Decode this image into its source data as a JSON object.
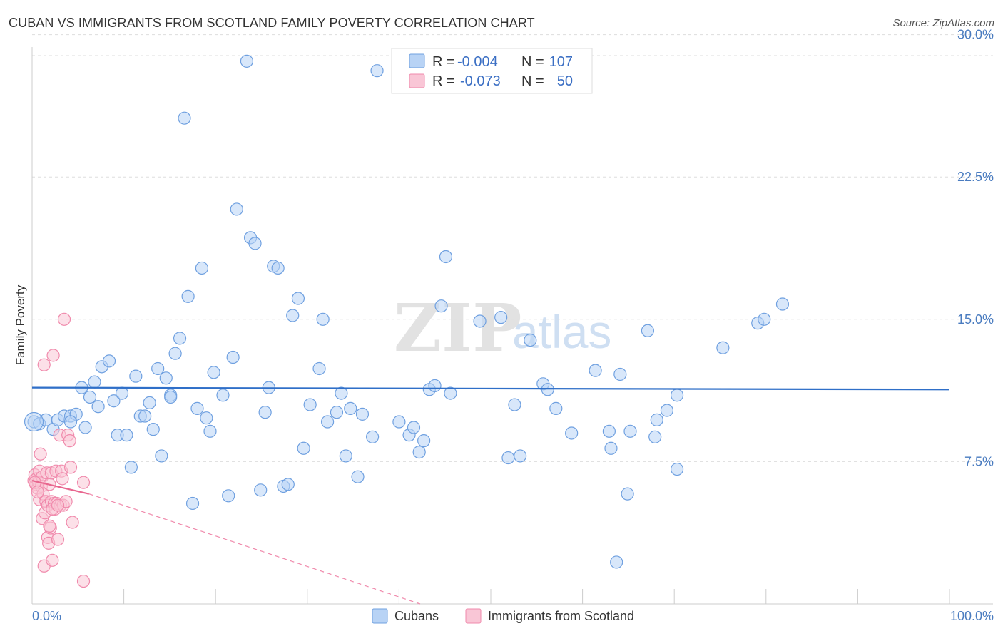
{
  "header": {
    "title": "CUBAN VS IMMIGRANTS FROM SCOTLAND FAMILY POVERTY CORRELATION CHART",
    "source": "Source: ZipAtlas.com"
  },
  "watermark": {
    "zip": "ZIP",
    "atlas": "atlas"
  },
  "legend_top": [
    {
      "r_label": "R =",
      "r_value": "-0.004",
      "n_label": "N =",
      "n_value": "107",
      "color": "#6fa0e0",
      "fill": "#b8d3f5"
    },
    {
      "r_label": "R =",
      "r_value": "-0.073",
      "n_label": "N =",
      "n_value": "50",
      "color": "#f08aac",
      "fill": "#f9c6d6"
    }
  ],
  "legend_bottom": [
    {
      "label": "Cubans",
      "color": "#6fa0e0",
      "fill": "#b8d3f5"
    },
    {
      "label": "Immigrants from Scotland",
      "color": "#f08aac",
      "fill": "#f9c6d6"
    }
  ],
  "chart_data": {
    "type": "scatter",
    "title": "CUBAN VS IMMIGRANTS FROM SCOTLAND FAMILY POVERTY CORRELATION CHART",
    "xlabel": "",
    "ylabel": "Family Poverty",
    "xlim": [
      0,
      100
    ],
    "ylim": [
      0,
      31
    ],
    "x_tick_labels": [
      "0.0%",
      "100.0%"
    ],
    "y_ticks": [
      7.5,
      15.0,
      22.5,
      30.0
    ],
    "y_tick_labels": [
      "7.5%",
      "15.0%",
      "22.5%",
      "30.0%"
    ],
    "grid": "horizontal dashed",
    "legend_placement": "top-center",
    "series": [
      {
        "name": "Cubans",
        "color": "#6fa0e0",
        "fill": "#b8d3f5",
        "trend": {
          "x": [
            0,
            100
          ],
          "y": [
            11.4,
            11.3
          ],
          "style": "solid"
        },
        "points": [
          [
            0.2,
            9.6
          ],
          [
            0.8,
            9.5
          ],
          [
            1.5,
            9.7
          ],
          [
            2.3,
            9.2
          ],
          [
            2.8,
            9.7
          ],
          [
            3.5,
            9.9
          ],
          [
            4.2,
            9.9
          ],
          [
            4.8,
            10.0
          ],
          [
            5.4,
            11.4
          ],
          [
            5.8,
            9.3
          ],
          [
            6.3,
            10.9
          ],
          [
            6.8,
            11.7
          ],
          [
            7.2,
            10.4
          ],
          [
            7.6,
            12.5
          ],
          [
            8.4,
            12.8
          ],
          [
            8.9,
            10.7
          ],
          [
            9.3,
            8.9
          ],
          [
            9.8,
            11.1
          ],
          [
            10.3,
            8.9
          ],
          [
            10.8,
            7.2
          ],
          [
            11.3,
            12.0
          ],
          [
            11.8,
            9.9
          ],
          [
            12.3,
            9.9
          ],
          [
            12.8,
            10.6
          ],
          [
            13.2,
            9.2
          ],
          [
            13.7,
            12.4
          ],
          [
            14.1,
            7.8
          ],
          [
            14.6,
            11.9
          ],
          [
            15.1,
            11.0
          ],
          [
            15.6,
            13.2
          ],
          [
            16.1,
            14.0
          ],
          [
            16.6,
            25.6
          ],
          [
            17.0,
            16.2
          ],
          [
            17.5,
            5.3
          ],
          [
            18.0,
            10.3
          ],
          [
            18.5,
            17.7
          ],
          [
            19.0,
            9.8
          ],
          [
            19.4,
            9.1
          ],
          [
            19.8,
            12.2
          ],
          [
            20.8,
            11.0
          ],
          [
            21.4,
            5.7
          ],
          [
            21.9,
            13.0
          ],
          [
            22.3,
            20.8
          ],
          [
            23.4,
            28.6
          ],
          [
            23.8,
            19.3
          ],
          [
            24.3,
            19.0
          ],
          [
            24.9,
            6.0
          ],
          [
            25.4,
            10.1
          ],
          [
            25.8,
            11.4
          ],
          [
            26.3,
            17.8
          ],
          [
            26.8,
            17.7
          ],
          [
            27.4,
            6.2
          ],
          [
            27.9,
            6.3
          ],
          [
            28.4,
            15.2
          ],
          [
            29.0,
            16.1
          ],
          [
            29.6,
            8.2
          ],
          [
            30.3,
            10.5
          ],
          [
            31.3,
            12.4
          ],
          [
            31.7,
            15.0
          ],
          [
            32.2,
            9.6
          ],
          [
            33.2,
            10.1
          ],
          [
            33.7,
            11.1
          ],
          [
            34.2,
            7.8
          ],
          [
            34.7,
            10.3
          ],
          [
            35.5,
            6.7
          ],
          [
            36.0,
            10.0
          ],
          [
            37.1,
            8.8
          ],
          [
            37.6,
            28.1
          ],
          [
            40.0,
            9.6
          ],
          [
            41.1,
            8.9
          ],
          [
            41.6,
            9.3
          ],
          [
            42.2,
            8.0
          ],
          [
            42.7,
            8.6
          ],
          [
            43.3,
            11.3
          ],
          [
            43.9,
            11.5
          ],
          [
            44.6,
            15.7
          ],
          [
            45.1,
            18.3
          ],
          [
            45.6,
            11.1
          ],
          [
            48.8,
            14.9
          ],
          [
            51.1,
            15.1
          ],
          [
            51.9,
            7.7
          ],
          [
            52.6,
            10.5
          ],
          [
            53.2,
            7.8
          ],
          [
            54.3,
            13.9
          ],
          [
            55.7,
            11.6
          ],
          [
            56.2,
            11.3
          ],
          [
            57.1,
            10.3
          ],
          [
            58.8,
            9.0
          ],
          [
            61.4,
            12.3
          ],
          [
            62.9,
            9.1
          ],
          [
            63.1,
            8.2
          ],
          [
            64.1,
            12.1
          ],
          [
            64.9,
            5.8
          ],
          [
            65.2,
            9.1
          ],
          [
            67.1,
            14.4
          ],
          [
            67.9,
            8.8
          ],
          [
            68.1,
            9.7
          ],
          [
            69.2,
            10.2
          ],
          [
            70.3,
            7.1
          ],
          [
            70.3,
            11.0
          ],
          [
            75.3,
            13.5
          ],
          [
            79.1,
            14.8
          ],
          [
            79.8,
            15.0
          ],
          [
            81.8,
            15.8
          ],
          [
            63.7,
            2.2
          ],
          [
            15.1,
            10.9
          ],
          [
            4.2,
            9.6
          ]
        ]
      },
      {
        "name": "Immigrants from Scotland",
        "color": "#f08aac",
        "fill": "#f9c6d6",
        "trend": {
          "x": [
            0,
            6.2
          ],
          "y": [
            6.5,
            5.8
          ],
          "style": "solid",
          "extended": {
            "x": [
              6.2,
              42.3
            ],
            "y": [
              5.8,
              0.0
            ],
            "style": "dashed"
          }
        },
        "points": [
          [
            0.2,
            6.5
          ],
          [
            0.3,
            6.8
          ],
          [
            0.4,
            6.3
          ],
          [
            0.5,
            6.6
          ],
          [
            0.6,
            6.1
          ],
          [
            0.7,
            6.4
          ],
          [
            0.8,
            7.0
          ],
          [
            0.8,
            5.5
          ],
          [
            0.9,
            7.9
          ],
          [
            1.0,
            6.2
          ],
          [
            1.1,
            4.5
          ],
          [
            1.1,
            6.7
          ],
          [
            1.2,
            5.8
          ],
          [
            1.3,
            2.0
          ],
          [
            1.3,
            12.6
          ],
          [
            1.4,
            4.8
          ],
          [
            1.5,
            5.4
          ],
          [
            1.6,
            6.9
          ],
          [
            1.7,
            3.5
          ],
          [
            1.7,
            5.2
          ],
          [
            1.8,
            3.2
          ],
          [
            1.9,
            6.3
          ],
          [
            2.0,
            4.0
          ],
          [
            2.1,
            5.4
          ],
          [
            2.1,
            6.9
          ],
          [
            2.2,
            2.3
          ],
          [
            2.3,
            13.1
          ],
          [
            2.4,
            5.3
          ],
          [
            2.5,
            5.0
          ],
          [
            2.6,
            7.0
          ],
          [
            2.7,
            5.3
          ],
          [
            2.8,
            3.4
          ],
          [
            3.0,
            8.9
          ],
          [
            3.1,
            5.2
          ],
          [
            3.2,
            7.0
          ],
          [
            3.3,
            6.6
          ],
          [
            3.4,
            5.2
          ],
          [
            3.5,
            15.0
          ],
          [
            3.7,
            5.4
          ],
          [
            3.9,
            8.9
          ],
          [
            4.1,
            8.6
          ],
          [
            4.2,
            7.2
          ],
          [
            4.4,
            4.3
          ],
          [
            0.3,
            6.4
          ],
          [
            0.6,
            5.9
          ],
          [
            1.9,
            4.1
          ],
          [
            2.2,
            5.0
          ],
          [
            2.8,
            5.2
          ],
          [
            5.6,
            6.4
          ],
          [
            5.6,
            1.2
          ]
        ]
      }
    ]
  }
}
